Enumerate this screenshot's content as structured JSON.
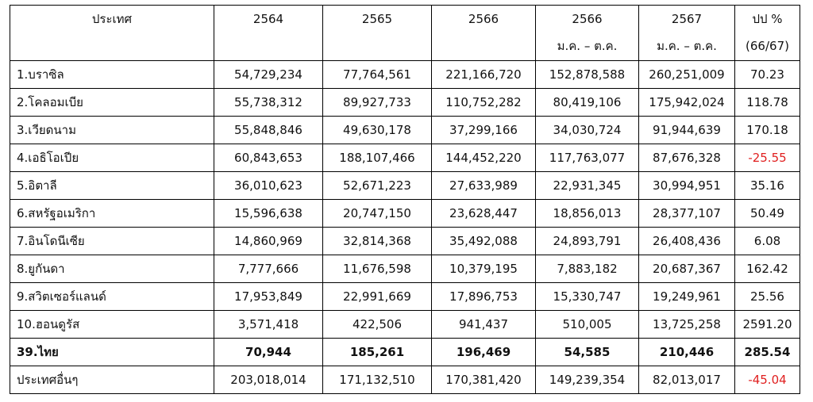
{
  "headers": {
    "country": "ประเทศ",
    "y2564": "2564",
    "y2565": "2565",
    "y2566": "2566",
    "y2566p": "2566",
    "y2566p_sub": "ม.ค. – ต.ค.",
    "y2567p": "2567",
    "y2567p_sub": "ม.ค. – ต.ค.",
    "change": "ปป %",
    "change_sub": "(66/67)"
  },
  "rows": [
    {
      "country": "1.บราซิล",
      "v2564": "54,729,234",
      "v2565": "77,764,561",
      "v2566": "221,166,720",
      "v2566p": "152,878,588",
      "v2567p": "260,251,009",
      "change": "70.23"
    },
    {
      "country": "2.โคลอมเบีย",
      "v2564": "55,738,312",
      "v2565": "89,927,733",
      "v2566": "110,752,282",
      "v2566p": "80,419,106",
      "v2567p": "175,942,024",
      "change": "118.78"
    },
    {
      "country": "3.เวียดนาม",
      "v2564": "55,848,846",
      "v2565": "49,630,178",
      "v2566": "37,299,166",
      "v2566p": "34,030,724",
      "v2567p": "91,944,639",
      "change": "170.18"
    },
    {
      "country": "4.เอธิโอเปีย",
      "v2564": "60,843,653",
      "v2565": "188,107,466",
      "v2566": "144,452,220",
      "v2566p": "117,763,077",
      "v2567p": "87,676,328",
      "change": "-25.55"
    },
    {
      "country": "5.อิตาลี",
      "v2564": "36,010,623",
      "v2565": "52,671,223",
      "v2566": "27,633,989",
      "v2566p": "22,931,345",
      "v2567p": "30,994,951",
      "change": "35.16"
    },
    {
      "country": "6.สหรัฐอเมริกา",
      "v2564": "15,596,638",
      "v2565": "20,747,150",
      "v2566": "23,628,447",
      "v2566p": "18,856,013",
      "v2567p": "28,377,107",
      "change": "50.49"
    },
    {
      "country": "7.อินโดนีเซีย",
      "v2564": "14,860,969",
      "v2565": "32,814,368",
      "v2566": "35,492,088",
      "v2566p": "24,893,791",
      "v2567p": "26,408,436",
      "change": "6.08"
    },
    {
      "country": "8.ยูกันดา",
      "v2564": "7,777,666",
      "v2565": "11,676,598",
      "v2566": "10,379,195",
      "v2566p": "7,883,182",
      "v2567p": "20,687,367",
      "change": "162.42"
    },
    {
      "country": "9.สวิตเซอร์แลนด์",
      "v2564": "17,953,849",
      "v2565": "22,991,669",
      "v2566": "17,896,753",
      "v2566p": "15,330,747",
      "v2567p": "19,249,961",
      "change": "25.56"
    },
    {
      "country": "10.ฮอนดูรัส",
      "v2564": "3,571,418",
      "v2565": "422,506",
      "v2566": "941,437",
      "v2566p": "510,005",
      "v2567p": "13,725,258",
      "change": "2591.20"
    },
    {
      "country": "39.ไทย",
      "v2564": "70,944",
      "v2565": "185,261",
      "v2566": "196,469",
      "v2566p": "54,585",
      "v2567p": "210,446",
      "change": "285.54"
    },
    {
      "country": "ประเทศอื่นๆ",
      "v2564": "203,018,014",
      "v2565": "171,132,510",
      "v2566": "170,381,420",
      "v2566p": "149,239,354",
      "v2567p": "82,013,017",
      "change": "-45.04"
    }
  ],
  "colors": {
    "negative": "#e02020",
    "border": "#000000"
  }
}
